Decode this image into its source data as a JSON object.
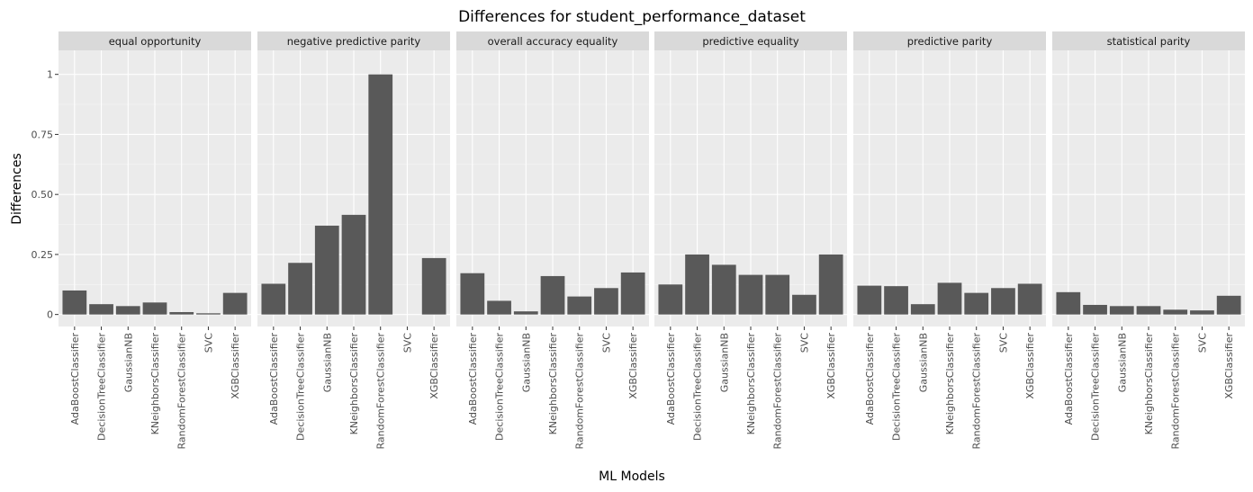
{
  "chart_data": {
    "type": "bar",
    "title": "Differences for student_performance_dataset",
    "xlabel": "ML Models",
    "ylabel": "Differences",
    "ylim": [
      -0.05,
      1.1
    ],
    "y_ticks": [
      0,
      0.25,
      0.5,
      0.75,
      1
    ],
    "y_tick_labels": [
      "0",
      "0.25",
      "0.50",
      "0.75",
      "1"
    ],
    "grid": true,
    "theme": "ggplot grey",
    "colors": {
      "bar": "#595959",
      "panel_bg": "#ebebeb",
      "strip_bg": "#d9d9d9",
      "grid_major": "#ffffff"
    },
    "categories": [
      "AdaBoostClassifier",
      "DecisionTreeClassifier",
      "GaussianNB",
      "KNeighborsClassifier",
      "RandomForestClassifier",
      "SVC",
      "XGBClassifier"
    ],
    "facets": [
      {
        "name": "equal opportunity",
        "values": [
          0.1,
          0.043,
          0.035,
          0.05,
          0.01,
          0.005,
          0.09
        ]
      },
      {
        "name": "negative predictive parity",
        "values": [
          0.128,
          0.215,
          0.37,
          0.415,
          1.0,
          0.0,
          0.235
        ]
      },
      {
        "name": "overall accuracy equality",
        "values": [
          0.172,
          0.057,
          0.013,
          0.16,
          0.075,
          0.11,
          0.175
        ]
      },
      {
        "name": "predictive equality",
        "values": [
          0.125,
          0.25,
          0.207,
          0.165,
          0.165,
          0.082,
          0.25
        ]
      },
      {
        "name": "predictive parity",
        "values": [
          0.12,
          0.118,
          0.043,
          0.132,
          0.09,
          0.11,
          0.128
        ]
      },
      {
        "name": "statistical parity",
        "values": [
          0.093,
          0.04,
          0.035,
          0.035,
          0.02,
          0.017,
          0.078
        ]
      }
    ]
  }
}
